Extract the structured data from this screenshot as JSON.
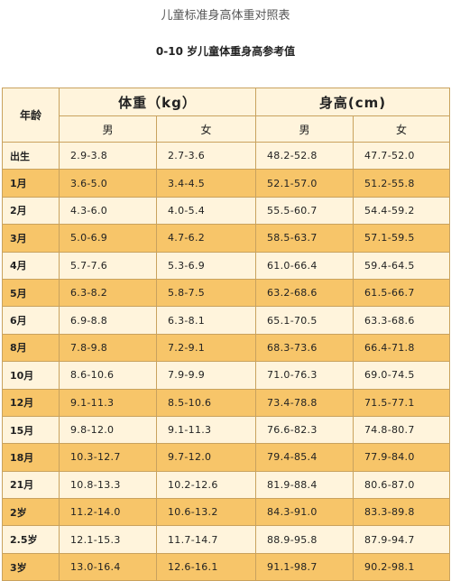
{
  "title": "儿童标准身高体重对照表",
  "subtitle": "0-10 岁儿童体重身高参考值",
  "table": {
    "age_header": "年龄",
    "weight_header": "体重（kg）",
    "height_header": "身高(cm)",
    "male_label": "男",
    "female_label": "女",
    "rows": [
      {
        "age": "出生",
        "w_m": "2.9-3.8",
        "w_f": "2.7-3.6",
        "h_m": "48.2-52.8",
        "h_f": "47.7-52.0"
      },
      {
        "age": "1月",
        "w_m": "3.6-5.0",
        "w_f": "3.4-4.5",
        "h_m": "52.1-57.0",
        "h_f": "51.2-55.8"
      },
      {
        "age": "2月",
        "w_m": "4.3-6.0",
        "w_f": "4.0-5.4",
        "h_m": "55.5-60.7",
        "h_f": "54.4-59.2"
      },
      {
        "age": "3月",
        "w_m": "5.0-6.9",
        "w_f": "4.7-6.2",
        "h_m": "58.5-63.7",
        "h_f": "57.1-59.5"
      },
      {
        "age": "4月",
        "w_m": "5.7-7.6",
        "w_f": "5.3-6.9",
        "h_m": "61.0-66.4",
        "h_f": "59.4-64.5"
      },
      {
        "age": "5月",
        "w_m": "6.3-8.2",
        "w_f": "5.8-7.5",
        "h_m": "63.2-68.6",
        "h_f": "61.5-66.7"
      },
      {
        "age": "6月",
        "w_m": "6.9-8.8",
        "w_f": "6.3-8.1",
        "h_m": "65.1-70.5",
        "h_f": "63.3-68.6"
      },
      {
        "age": "8月",
        "w_m": "7.8-9.8",
        "w_f": "7.2-9.1",
        "h_m": "68.3-73.6",
        "h_f": "66.4-71.8"
      },
      {
        "age": "10月",
        "w_m": "8.6-10.6",
        "w_f": "7.9-9.9",
        "h_m": "71.0-76.3",
        "h_f": "69.0-74.5"
      },
      {
        "age": "12月",
        "w_m": "9.1-11.3",
        "w_f": "8.5-10.6",
        "h_m": "73.4-78.8",
        "h_f": "71.5-77.1"
      },
      {
        "age": "15月",
        "w_m": "9.8-12.0",
        "w_f": "9.1-11.3",
        "h_m": "76.6-82.3",
        "h_f": "74.8-80.7"
      },
      {
        "age": "18月",
        "w_m": "10.3-12.7",
        "w_f": "9.7-12.0",
        "h_m": "79.4-85.4",
        "h_f": "77.9-84.0"
      },
      {
        "age": "21月",
        "w_m": "10.8-13.3",
        "w_f": "10.2-12.6",
        "h_m": "81.9-88.4",
        "h_f": "80.6-87.0"
      },
      {
        "age": "2岁",
        "w_m": "11.2-14.0",
        "w_f": "10.6-13.2",
        "h_m": "84.3-91.0",
        "h_f": "83.3-89.8"
      },
      {
        "age": "2.5岁",
        "w_m": "12.1-15.3",
        "w_f": "11.7-14.7",
        "h_m": "88.9-95.8",
        "h_f": "87.9-94.7"
      },
      {
        "age": "3岁",
        "w_m": "13.0-16.4",
        "w_f": "12.6-16.1",
        "h_m": "91.1-98.7",
        "h_f": "90.2-98.1"
      }
    ]
  },
  "colors": {
    "light_row": "#fff4dc",
    "dark_row": "#f7c569",
    "border": "#c9a25e"
  }
}
